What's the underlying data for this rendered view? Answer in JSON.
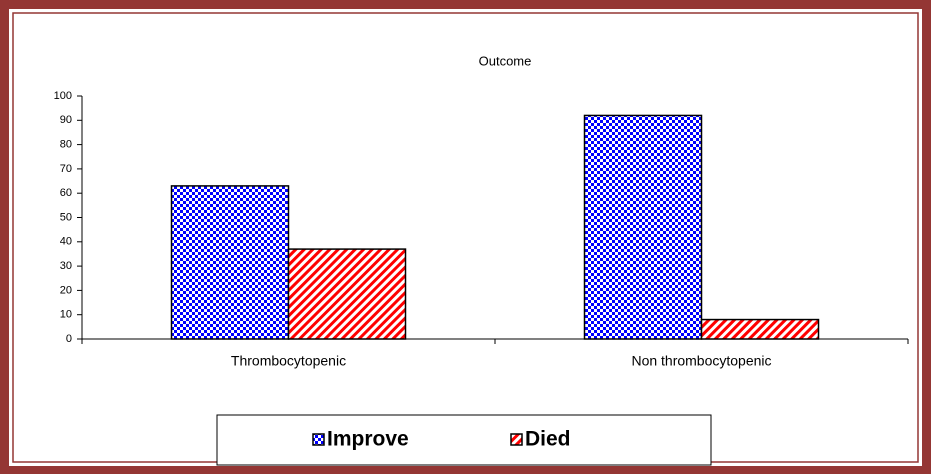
{
  "chart_data": {
    "type": "bar",
    "title": "Outcome",
    "categories": [
      "Thrombocytopenic",
      "Non thrombocytopenic"
    ],
    "series": [
      {
        "name": "Improve",
        "color": "#0000ff",
        "values": [
          63,
          92
        ]
      },
      {
        "name": "Died",
        "color": "#ff0000",
        "values": [
          37,
          8
        ]
      }
    ],
    "ylim": [
      0,
      100
    ],
    "yticks": [
      0,
      10,
      20,
      30,
      40,
      50,
      60,
      70,
      80,
      90,
      100
    ],
    "grid": false
  }
}
